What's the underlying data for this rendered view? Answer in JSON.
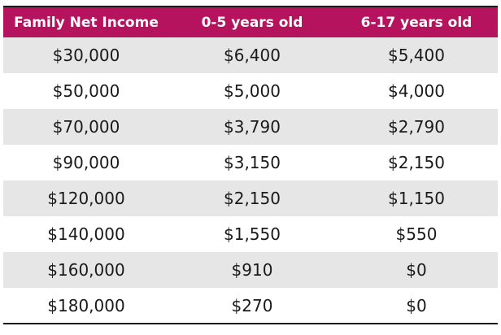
{
  "table": {
    "header_bg": "#b5135e",
    "stripe_color": "#e6e6e6",
    "columns": [
      "Family Net Income",
      "0-5 years old",
      "6-17 years old"
    ],
    "rows": [
      [
        "$30,000",
        "$6,400",
        "$5,400"
      ],
      [
        "$50,000",
        "$5,000",
        "$4,000"
      ],
      [
        "$70,000",
        "$3,790",
        "$2,790"
      ],
      [
        "$90,000",
        "$3,150",
        "$2,150"
      ],
      [
        "$120,000",
        "$2,150",
        "$1,150"
      ],
      [
        "$140,000",
        "$1,550",
        "$550"
      ],
      [
        "$160,000",
        "$910",
        "$0"
      ],
      [
        "$180,000",
        "$270",
        "$0"
      ]
    ]
  }
}
